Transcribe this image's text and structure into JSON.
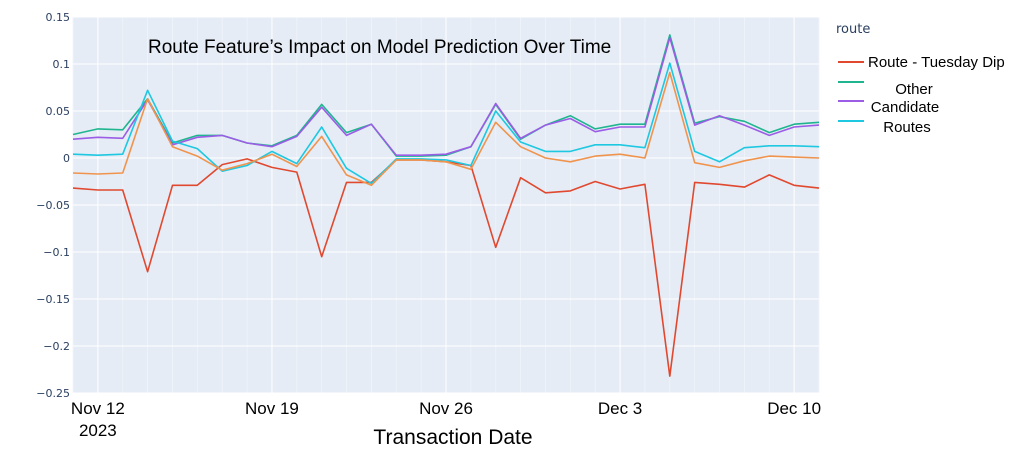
{
  "chart_data": {
    "type": "line",
    "title": "Route Feature’s Impact on Model Prediction Over Time",
    "xlabel": "Transaction Date",
    "ylabel": "",
    "ylim": [
      -0.25,
      0.15
    ],
    "yticks": [
      0.15,
      0.1,
      0.05,
      0,
      -0.05,
      -0.1,
      -0.15,
      -0.2,
      -0.25
    ],
    "ytick_labels": [
      "0.15",
      "0.1",
      "0.05",
      "0",
      "−0.05",
      "−0.1",
      "−0.15",
      "−0.2",
      "−0.25"
    ],
    "xlim": [
      "2023-11-11",
      "2023-12-11"
    ],
    "xticks": [
      {
        "x": "2023-11-12",
        "label": "Nov 12",
        "sublabel": "2023"
      },
      {
        "x": "2023-11-19",
        "label": "Nov 19",
        "sublabel": ""
      },
      {
        "x": "2023-11-26",
        "label": "Nov 26",
        "sublabel": ""
      },
      {
        "x": "2023-12-03",
        "label": "Dec 3",
        "sublabel": ""
      },
      {
        "x": "2023-12-10",
        "label": "Dec 10",
        "sublabel": ""
      }
    ],
    "grid": true,
    "legend_title": "route",
    "legend_position": "right",
    "legend_entries": [
      {
        "label": "Route - Tuesday Dip",
        "color": "#e0492f"
      },
      {
        "label": "Other",
        "color": "#1fb58f"
      },
      {
        "label": "Candidate",
        "color": "#9b5de5"
      },
      {
        "label": "Routes",
        "color": "#1ec8e0"
      }
    ],
    "x": [
      "2023-11-11",
      "2023-11-12",
      "2023-11-13",
      "2023-11-14",
      "2023-11-15",
      "2023-11-16",
      "2023-11-17",
      "2023-11-18",
      "2023-11-19",
      "2023-11-20",
      "2023-11-21",
      "2023-11-22",
      "2023-11-23",
      "2023-11-24",
      "2023-11-25",
      "2023-11-26",
      "2023-11-27",
      "2023-11-28",
      "2023-11-29",
      "2023-11-30",
      "2023-12-01",
      "2023-12-02",
      "2023-12-03",
      "2023-12-04",
      "2023-12-05",
      "2023-12-06",
      "2023-12-07",
      "2023-12-08",
      "2023-12-09",
      "2023-12-10",
      "2023-12-11"
    ],
    "series": [
      {
        "color": "#e0492f",
        "values": [
          -0.032,
          -0.034,
          -0.034,
          -0.121,
          -0.029,
          -0.029,
          -0.007,
          -0.001,
          -0.01,
          -0.015,
          -0.105,
          -0.026,
          -0.026,
          -0.002,
          -0.002,
          -0.004,
          -0.008,
          -0.095,
          -0.021,
          -0.037,
          -0.035,
          -0.025,
          -0.033,
          -0.028,
          -0.232,
          -0.026,
          -0.028,
          -0.031,
          -0.018,
          -0.029,
          -0.032
        ]
      },
      {
        "color": "#1fb58f",
        "values": [
          0.025,
          0.031,
          0.03,
          0.063,
          0.016,
          0.024,
          0.024,
          0.016,
          0.013,
          0.024,
          0.057,
          0.027,
          0.036,
          0.002,
          0.002,
          0.003,
          0.012,
          0.057,
          0.02,
          0.035,
          0.045,
          0.031,
          0.036,
          0.036,
          0.131,
          0.037,
          0.044,
          0.039,
          0.027,
          0.036,
          0.038
        ]
      },
      {
        "color": "#9b5de5",
        "values": [
          0.02,
          0.022,
          0.021,
          0.062,
          0.014,
          0.022,
          0.024,
          0.016,
          0.012,
          0.023,
          0.054,
          0.024,
          0.036,
          0.003,
          0.003,
          0.004,
          0.012,
          0.058,
          0.021,
          0.035,
          0.042,
          0.028,
          0.033,
          0.033,
          0.128,
          0.035,
          0.045,
          0.035,
          0.024,
          0.033,
          0.035
        ]
      },
      {
        "color": "#1ec8e0",
        "values": [
          0.004,
          0.003,
          0.004,
          0.072,
          0.018,
          0.01,
          -0.014,
          -0.008,
          0.007,
          -0.006,
          0.033,
          -0.011,
          -0.027,
          -0.001,
          -0.001,
          -0.002,
          -0.008,
          0.05,
          0.017,
          0.007,
          0.007,
          0.014,
          0.014,
          0.011,
          0.101,
          0.007,
          -0.004,
          0.011,
          0.013,
          0.013,
          0.012
        ]
      },
      {
        "color": "#f0944d",
        "values": [
          -0.016,
          -0.017,
          -0.016,
          0.063,
          0.012,
          0.002,
          -0.013,
          -0.006,
          0.004,
          -0.009,
          0.023,
          -0.018,
          -0.029,
          -0.002,
          -0.002,
          -0.004,
          -0.012,
          0.038,
          0.012,
          0.0,
          -0.004,
          0.002,
          0.004,
          0.0,
          0.091,
          -0.005,
          -0.01,
          -0.003,
          0.002,
          0.001,
          0.0
        ]
      }
    ]
  }
}
